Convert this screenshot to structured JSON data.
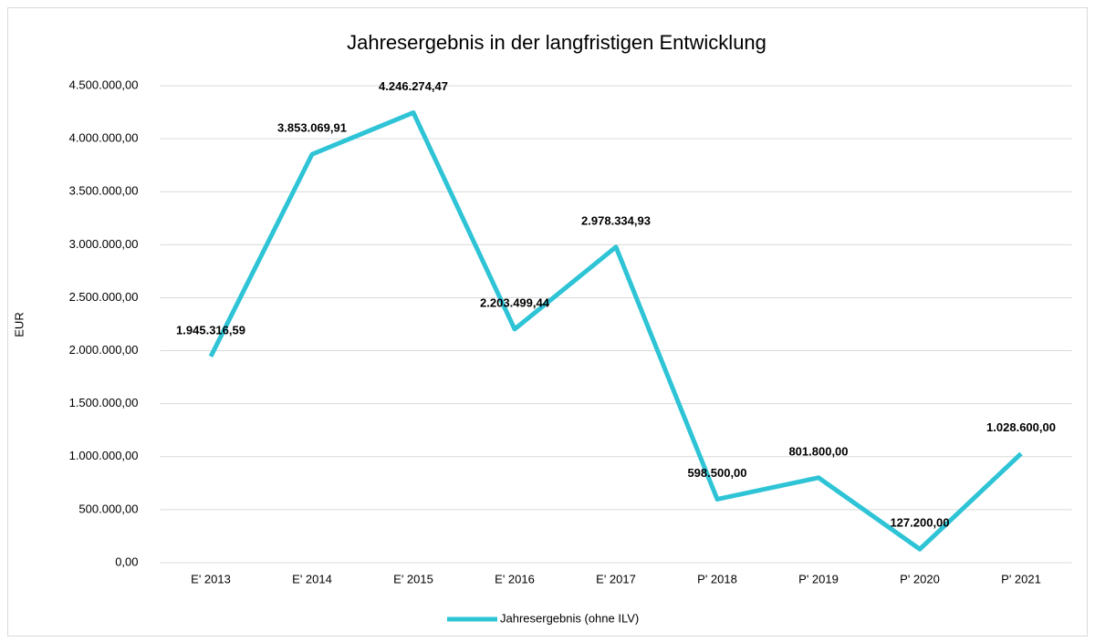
{
  "chart_data": {
    "type": "line",
    "title": "Jahresergebnis in der langfristigen Entwicklung",
    "y_label": "EUR",
    "categories": [
      "E' 2013",
      "E' 2014",
      "E' 2015",
      "E' 2016",
      "E' 2017",
      "P' 2018",
      "P' 2019",
      "P' 2020",
      "P' 2021"
    ],
    "series": [
      {
        "name": "Jahresergebnis (ohne ILV)",
        "color": "#2ec4d6",
        "values": [
          1945316.59,
          3853069.91,
          4246274.47,
          2203499.44,
          2978334.93,
          598500,
          801800,
          127200,
          1028600
        ],
        "value_labels": [
          "1.945.316,59",
          "3.853.069,91",
          "4.246.274,47",
          "2.203.499,44",
          "2.978.334,93",
          "598.500,00",
          "801.800,00",
          "127.200,00",
          "1.028.600,00"
        ]
      }
    ],
    "ylim": [
      0,
      4500000
    ],
    "yticks": [
      {
        "value": 0,
        "label": "0,00"
      },
      {
        "value": 500000,
        "label": "500.000,00"
      },
      {
        "value": 1000000,
        "label": "1.000.000,00"
      },
      {
        "value": 1500000,
        "label": "1.500.000,00"
      },
      {
        "value": 2000000,
        "label": "2.000.000,00"
      },
      {
        "value": 2500000,
        "label": "2.500.000,00"
      },
      {
        "value": 3000000,
        "label": "3.000.000,00"
      },
      {
        "value": 3500000,
        "label": "3.500.000,00"
      },
      {
        "value": 4000000,
        "label": "4.000.000,00"
      },
      {
        "value": 4500000,
        "label": "4.500.000,00"
      }
    ],
    "grid": true,
    "legend": "bottom"
  }
}
